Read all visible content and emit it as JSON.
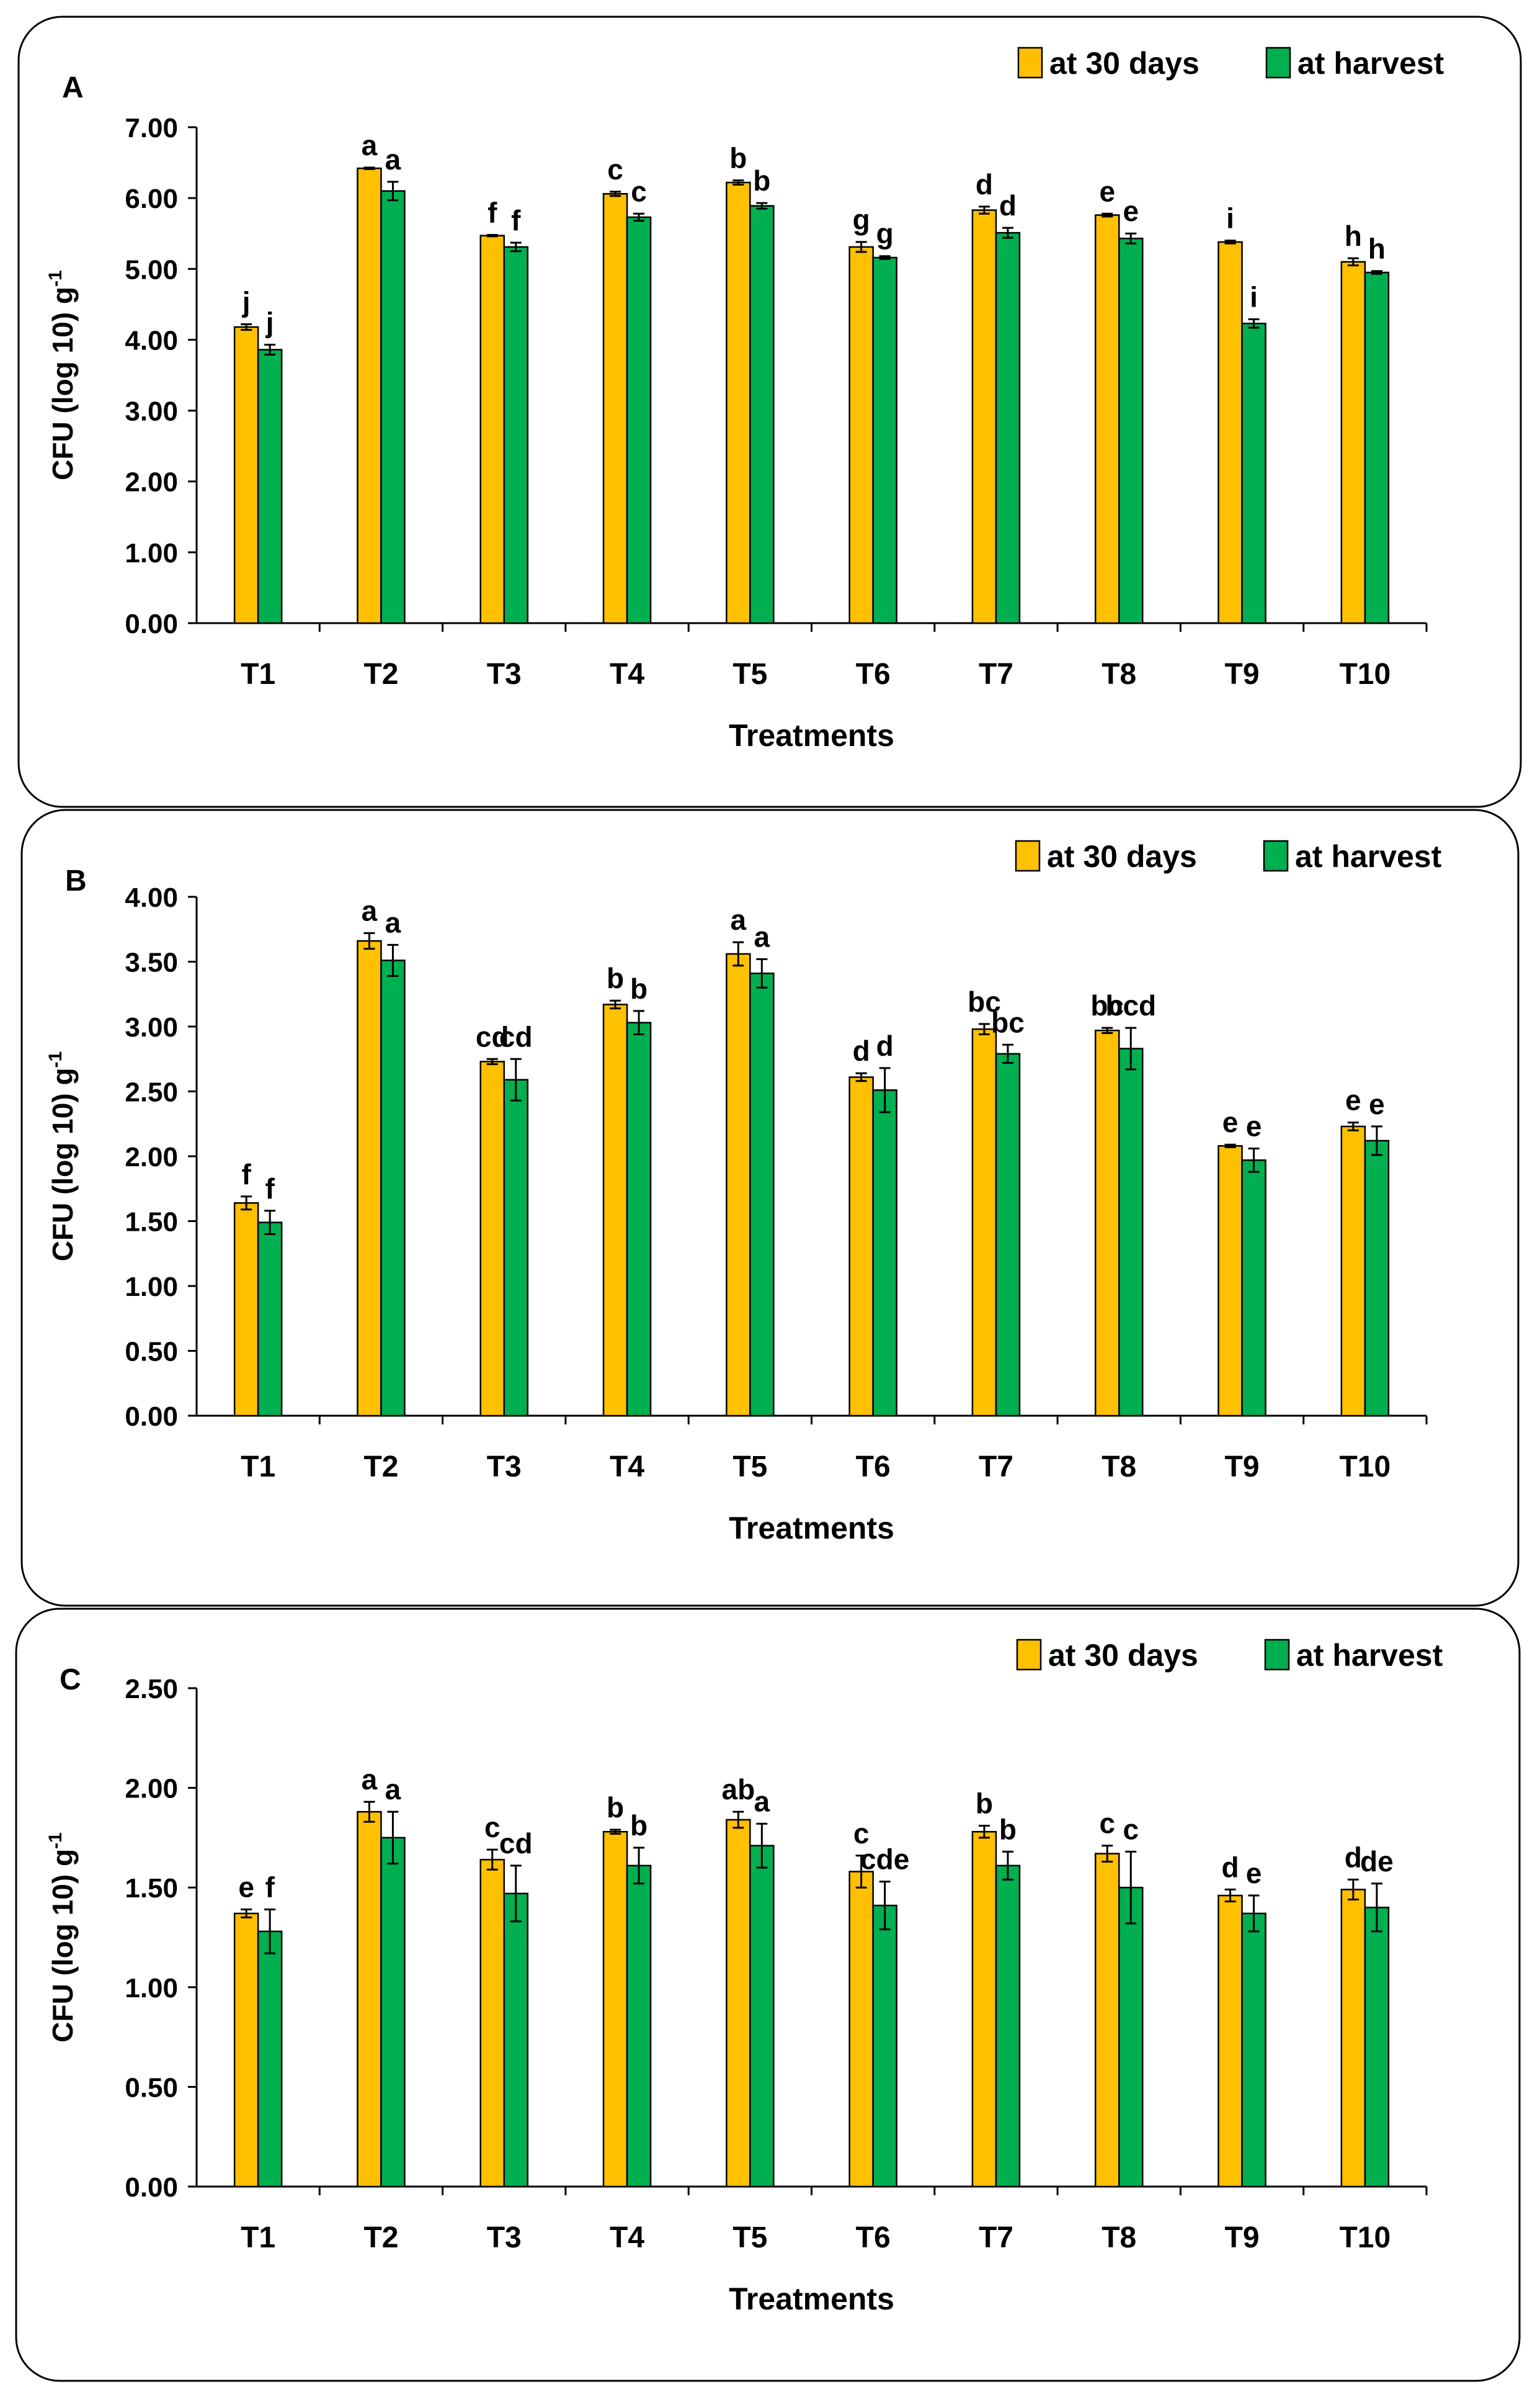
{
  "colors": {
    "series_30days": "#FFC000",
    "series_harvest": "#00B050",
    "axis": "#000000",
    "panel_border": "#000000",
    "background": "#FFFFFF"
  },
  "chart_data": [
    {
      "type": "bar",
      "panel_label": "A",
      "xlabel": "Treatments",
      "ylabel_main": "CFU (log 10) g",
      "ylabel_sup": "-1",
      "ylim": [
        0,
        7
      ],
      "yticks": [
        "0.00",
        "1.00",
        "2.00",
        "3.00",
        "4.00",
        "5.00",
        "6.00",
        "7.00"
      ],
      "grid": false,
      "legend_position": "top-right",
      "categories": [
        "T1",
        "T2",
        "T3",
        "T4",
        "T5",
        "T6",
        "T7",
        "T8",
        "T9",
        "T10"
      ],
      "series": [
        {
          "name": "at 30 days",
          "values": [
            4.18,
            6.42,
            5.47,
            6.06,
            6.22,
            5.31,
            5.83,
            5.76,
            5.38,
            5.1
          ],
          "errors": [
            0.04,
            0.01,
            0.01,
            0.03,
            0.03,
            0.07,
            0.05,
            0.02,
            0.02,
            0.05
          ],
          "letters": [
            "j",
            "a",
            "f",
            "c",
            "b",
            "g",
            "d",
            "e",
            "i",
            "h"
          ]
        },
        {
          "name": "at harvest",
          "values": [
            3.86,
            6.1,
            5.31,
            5.73,
            5.89,
            5.16,
            5.51,
            5.43,
            4.23,
            4.95
          ],
          "errors": [
            0.07,
            0.13,
            0.06,
            0.05,
            0.04,
            0.02,
            0.07,
            0.07,
            0.06,
            0.02
          ],
          "letters": [
            "j",
            "a",
            "f",
            "c",
            "b",
            "g",
            "d",
            "e",
            "i",
            "h"
          ]
        }
      ]
    },
    {
      "type": "bar",
      "panel_label": "B",
      "xlabel": "Treatments",
      "ylabel_main": "CFU (log 10) g",
      "ylabel_sup": "-1",
      "ylim": [
        0,
        4
      ],
      "yticks": [
        "0.00",
        "0.50",
        "1.00",
        "1.50",
        "2.00",
        "2.50",
        "3.00",
        "3.50",
        "4.00"
      ],
      "grid": false,
      "legend_position": "top-right",
      "categories": [
        "T1",
        "T2",
        "T3",
        "T4",
        "T5",
        "T6",
        "T7",
        "T8",
        "T9",
        "T10"
      ],
      "series": [
        {
          "name": "at 30 days",
          "values": [
            1.64,
            3.66,
            2.73,
            3.17,
            3.56,
            2.61,
            2.98,
            2.97,
            2.08,
            2.23
          ],
          "errors": [
            0.05,
            0.06,
            0.02,
            0.03,
            0.09,
            0.03,
            0.04,
            0.02,
            0.01,
            0.03
          ],
          "letters": [
            "f",
            "a",
            "cd",
            "b",
            "a",
            "d",
            "bc",
            "bc",
            "e",
            "e"
          ]
        },
        {
          "name": "at harvest",
          "values": [
            1.49,
            3.51,
            2.59,
            3.03,
            3.41,
            2.51,
            2.79,
            2.83,
            1.97,
            2.12
          ],
          "errors": [
            0.09,
            0.12,
            0.16,
            0.09,
            0.11,
            0.17,
            0.07,
            0.16,
            0.09,
            0.11
          ],
          "letters": [
            "f",
            "a",
            "cd",
            "b",
            "a",
            "d",
            "bc",
            "bcd",
            "e",
            "e"
          ]
        }
      ]
    },
    {
      "type": "bar",
      "panel_label": "C",
      "xlabel": "Treatments",
      "ylabel_main": "CFU (log 10) g",
      "ylabel_sup": "-1",
      "ylim": [
        0,
        2.5
      ],
      "yticks": [
        "0.00",
        "0.50",
        "1.00",
        "1.50",
        "2.00",
        "2.50"
      ],
      "grid": false,
      "legend_position": "top-right",
      "categories": [
        "T1",
        "T2",
        "T3",
        "T4",
        "T5",
        "T6",
        "T7",
        "T8",
        "T9",
        "T10"
      ],
      "series": [
        {
          "name": "at 30 days",
          "values": [
            1.37,
            1.88,
            1.64,
            1.78,
            1.84,
            1.58,
            1.78,
            1.67,
            1.46,
            1.49
          ],
          "errors": [
            0.02,
            0.05,
            0.05,
            0.01,
            0.04,
            0.08,
            0.03,
            0.04,
            0.03,
            0.05
          ],
          "letters": [
            "e",
            "a",
            "c",
            "b",
            "ab",
            "c",
            "b",
            "c",
            "d",
            "d"
          ]
        },
        {
          "name": "at harvest",
          "values": [
            1.28,
            1.75,
            1.47,
            1.61,
            1.71,
            1.41,
            1.61,
            1.5,
            1.37,
            1.4
          ],
          "errors": [
            0.11,
            0.13,
            0.14,
            0.09,
            0.11,
            0.12,
            0.07,
            0.18,
            0.09,
            0.12
          ],
          "letters": [
            "f",
            "a",
            "cd",
            "b",
            "a",
            "cde",
            "b",
            "c",
            "e",
            "de"
          ]
        }
      ]
    }
  ]
}
